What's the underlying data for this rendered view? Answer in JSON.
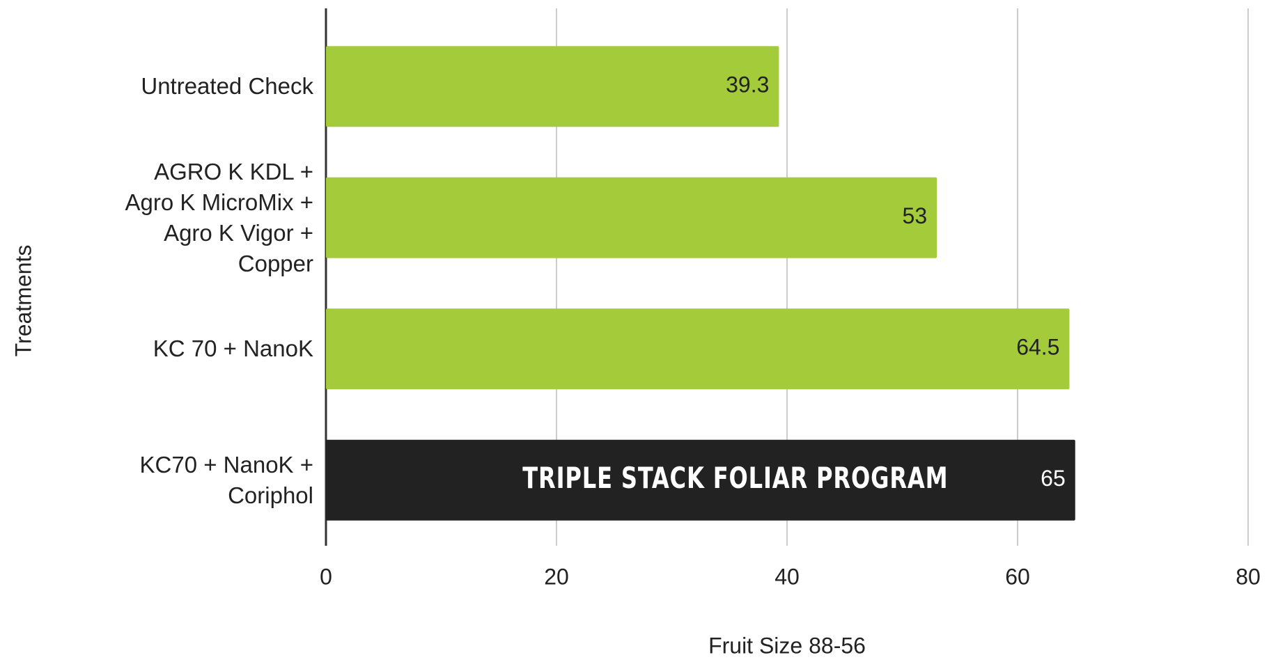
{
  "chart_data": {
    "type": "bar",
    "orientation": "horizontal",
    "xlabel": "Fruit Size 88-56",
    "ylabel": "Treatments",
    "categories": [
      "Untreated Check",
      "AGRO K KDL +\nAgro K MicroMix +\nAgro K Vigor +\nCopper",
      "KC 70 + NanoK",
      "KC70 + NanoK +\nCoriphol"
    ],
    "values": [
      39.3,
      53,
      64.5,
      65
    ],
    "colors": [
      "#a4cc3a",
      "#a4cc3a",
      "#a4cc3a",
      "#222222"
    ],
    "annotation": "TRIPLE STACK FOLIAR PROGRAM",
    "xlim": [
      0,
      80
    ],
    "xticks": [
      0,
      20,
      40,
      60,
      80
    ],
    "grid": true
  }
}
